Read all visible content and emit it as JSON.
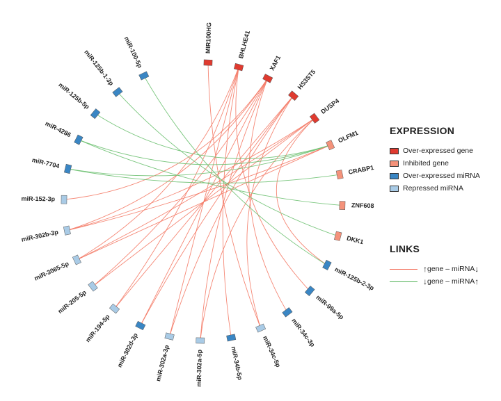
{
  "legend": {
    "expression_title": "EXPRESSION",
    "expression_items": [
      {
        "label": "Over-expressed gene",
        "color": "#e03a2f"
      },
      {
        "label": "Inhibited gene",
        "color": "#f4927a"
      },
      {
        "label": "Over-expressed miRNA",
        "color": "#3a86c4"
      },
      {
        "label": "Repressed miRNA",
        "color": "#a9cbe6"
      }
    ],
    "links_title": "LINKS",
    "links_items": [
      {
        "up_arrow": "↑",
        "gene": "gene – miRNA ",
        "down_arrow": "↓",
        "color": "#f26b56"
      },
      {
        "up_arrow": "↓",
        "gene": "gene – miRNA ",
        "down_arrow": "↑",
        "color": "#4caf50"
      }
    ]
  },
  "nodes": [
    {
      "id": "MIR100HG",
      "type": "over_gene"
    },
    {
      "id": "BHLHE41",
      "type": "over_gene"
    },
    {
      "id": "XAF1",
      "type": "over_gene"
    },
    {
      "id": "HS3ST5",
      "type": "over_gene"
    },
    {
      "id": "DUSP4",
      "type": "over_gene"
    },
    {
      "id": "OLFM1",
      "type": "inhibited_gene"
    },
    {
      "id": "CRABP1",
      "type": "inhibited_gene"
    },
    {
      "id": "ZNF608",
      "type": "inhibited_gene"
    },
    {
      "id": "DKK1",
      "type": "inhibited_gene"
    },
    {
      "id": "miR-125b-2-3p",
      "type": "over_mirna"
    },
    {
      "id": "miR-99a-5p",
      "type": "over_mirna"
    },
    {
      "id": "miR-34c-3p",
      "type": "over_mirna"
    },
    {
      "id": "miR-34c-5p",
      "type": "repressed_mirna"
    },
    {
      "id": "miR-34b-5p",
      "type": "over_mirna"
    },
    {
      "id": "miR-302a-5p",
      "type": "repressed_mirna"
    },
    {
      "id": "miR-302a-3p",
      "type": "repressed_mirna"
    },
    {
      "id": "miR-302d-3p",
      "type": "over_mirna"
    },
    {
      "id": "miR-194-5p",
      "type": "repressed_mirna"
    },
    {
      "id": "miR-205-5p",
      "type": "repressed_mirna"
    },
    {
      "id": "miR-3065-5p",
      "type": "repressed_mirna"
    },
    {
      "id": "miR-302b-3p",
      "type": "repressed_mirna"
    },
    {
      "id": "miR-152-3p",
      "type": "repressed_mirna"
    },
    {
      "id": "miR-7704",
      "type": "over_mirna"
    },
    {
      "id": "miR-4286",
      "type": "over_mirna"
    },
    {
      "id": "miR-125b-5p",
      "type": "over_mirna"
    },
    {
      "id": "miR-125b-1-3p",
      "type": "over_mirna"
    },
    {
      "id": "miR-100-5p",
      "type": "over_mirna"
    }
  ],
  "type_colors": {
    "over_gene": "#e03a2f",
    "inhibited_gene": "#f4927a",
    "over_mirna": "#3a86c4",
    "repressed_mirna": "#a9cbe6"
  },
  "links": [
    {
      "from": "MIR100HG",
      "to": "miR-34c-5p",
      "kind": "red"
    },
    {
      "from": "BHLHE41",
      "to": "miR-302a-3p",
      "kind": "red"
    },
    {
      "from": "BHLHE41",
      "to": "miR-194-5p",
      "kind": "red"
    },
    {
      "from": "BHLHE41",
      "to": "miR-3065-5p",
      "kind": "red"
    },
    {
      "from": "BHLHE41",
      "to": "miR-34b-5p",
      "kind": "red"
    },
    {
      "from": "BHLHE41",
      "to": "miR-99a-5p",
      "kind": "red"
    },
    {
      "from": "XAF1",
      "to": "miR-302d-3p",
      "kind": "red"
    },
    {
      "from": "XAF1",
      "to": "miR-302a-5p",
      "kind": "red"
    },
    {
      "from": "XAF1",
      "to": "miR-302b-3p",
      "kind": "red"
    },
    {
      "from": "XAF1",
      "to": "miR-152-3p",
      "kind": "red"
    },
    {
      "from": "XAF1",
      "to": "miR-34c-3p",
      "kind": "red"
    },
    {
      "from": "XAF1",
      "to": "miR-205-5p",
      "kind": "red"
    },
    {
      "from": "HS3ST5",
      "to": "miR-302d-3p",
      "kind": "red"
    },
    {
      "from": "HS3ST5",
      "to": "miR-194-5p",
      "kind": "red"
    },
    {
      "from": "HS3ST5",
      "to": "miR-302a-3p",
      "kind": "red"
    },
    {
      "from": "HS3ST5",
      "to": "miR-34c-5p",
      "kind": "red"
    },
    {
      "from": "DUSP4",
      "to": "miR-302b-3p",
      "kind": "red"
    },
    {
      "from": "DUSP4",
      "to": "miR-3065-5p",
      "kind": "red"
    },
    {
      "from": "DUSP4",
      "to": "miR-205-5p",
      "kind": "red"
    },
    {
      "from": "DUSP4",
      "to": "miR-125b-2-3p",
      "kind": "red"
    },
    {
      "from": "DUSP4",
      "to": "miR-302a-5p",
      "kind": "red"
    },
    {
      "from": "OLFM1",
      "to": "miR-302b-3p",
      "kind": "red"
    },
    {
      "from": "OLFM1",
      "to": "miR-3065-5p",
      "kind": "red"
    },
    {
      "from": "OLFM1",
      "to": "miR-4286",
      "kind": "green"
    },
    {
      "from": "OLFM1",
      "to": "miR-7704",
      "kind": "green"
    },
    {
      "from": "OLFM1",
      "to": "miR-125b-5p",
      "kind": "green"
    },
    {
      "from": "CRABP1",
      "to": "miR-7704",
      "kind": "green"
    },
    {
      "from": "ZNF608",
      "to": "miR-4286",
      "kind": "green"
    },
    {
      "from": "DKK1",
      "to": "miR-125b-1-3p",
      "kind": "green"
    },
    {
      "from": "miR-125b-2-3p",
      "to": "miR-100-5p",
      "kind": "green"
    }
  ]
}
